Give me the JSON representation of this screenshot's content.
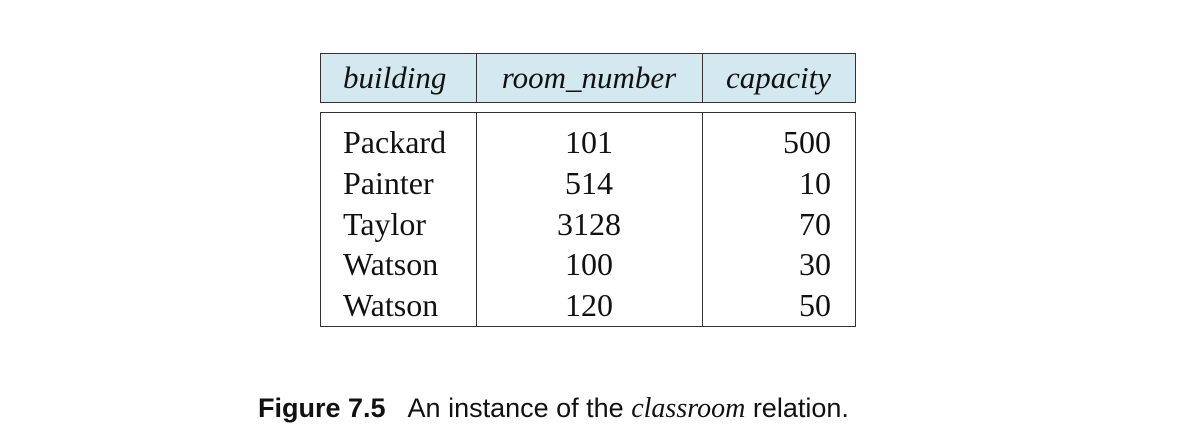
{
  "table": {
    "headers": [
      "building",
      "room_number",
      "capacity"
    ],
    "rows": [
      {
        "building": "Packard",
        "room_number": "101",
        "capacity": "500"
      },
      {
        "building": "Painter",
        "room_number": "514",
        "capacity": "10"
      },
      {
        "building": "Taylor",
        "room_number": "3128",
        "capacity": "70"
      },
      {
        "building": "Watson",
        "room_number": "100",
        "capacity": "30"
      },
      {
        "building": "Watson",
        "room_number": "120",
        "capacity": "50"
      }
    ]
  },
  "caption": {
    "label": "Figure 7.5",
    "text_before": "An instance of the",
    "relation": "classroom",
    "text_after": "relation."
  },
  "colors": {
    "header_background": "#d4e8f0",
    "border": "#333333"
  }
}
